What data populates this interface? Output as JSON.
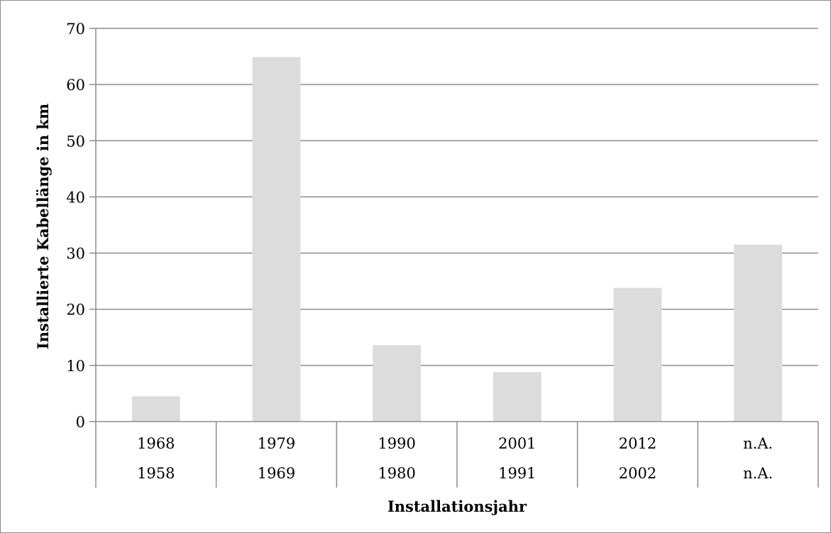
{
  "chart_data": {
    "type": "bar",
    "categories": [
      [
        "1968",
        "1958"
      ],
      [
        "1979",
        "1969"
      ],
      [
        "1990",
        "1980"
      ],
      [
        "2001",
        "1991"
      ],
      [
        "2012",
        "2002"
      ],
      [
        "n.A.",
        "n.A."
      ]
    ],
    "values": [
      4.5,
      64.9,
      13.6,
      8.8,
      23.8,
      31.5
    ],
    "xlabel": "Installationsjahr",
    "ylabel": "Installierte Kabellänge in km",
    "ylim": [
      0,
      70
    ],
    "yticks": [
      0,
      10,
      20,
      30,
      40,
      50,
      60,
      70
    ],
    "grid": true,
    "legend": "none",
    "bar_color": "#dcdcdc",
    "grid_color": "#8c8c8c"
  }
}
